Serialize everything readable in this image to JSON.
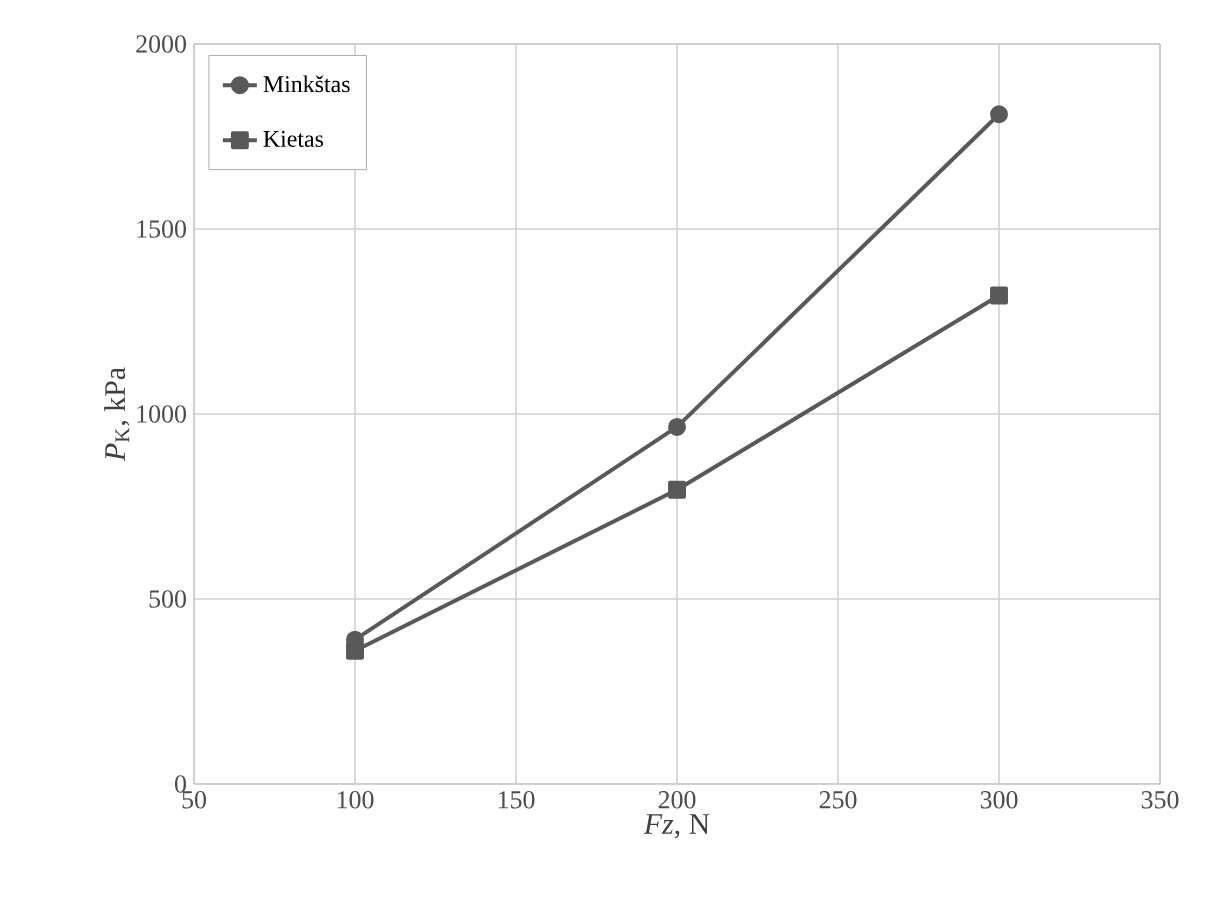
{
  "chart_data": {
    "type": "line",
    "xlabel": "*Fz*, N",
    "ylabel": "*P*$_{K}$, kPa",
    "x": [
      100,
      200,
      300
    ],
    "series": [
      {
        "name": "Minkštas",
        "color": "#595959",
        "marker": "circle",
        "values": [
          390,
          965,
          1810
        ]
      },
      {
        "name": "Kietas",
        "color": "#595959",
        "marker": "square",
        "values": [
          360,
          795,
          1320
        ]
      }
    ],
    "xlim": [
      50,
      350
    ],
    "xticks": [
      50,
      100,
      150,
      200,
      250,
      300,
      350
    ],
    "ylim": [
      0,
      2000
    ],
    "yticks": [
      0,
      500,
      1000,
      1500,
      2000
    ],
    "grid": true,
    "legend": "top left",
    "line_style": "solid"
  }
}
